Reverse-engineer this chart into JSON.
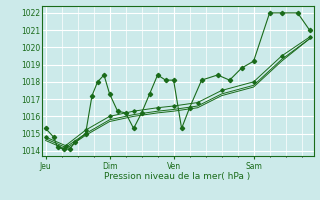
{
  "xlabel": "Pression niveau de la mer( hPa )",
  "bg_color": "#cceaea",
  "grid_color": "#ffffff",
  "line_color": "#1a6b1a",
  "ylim": [
    1013.7,
    1022.4
  ],
  "yticks": [
    1014,
    1015,
    1016,
    1017,
    1018,
    1019,
    1020,
    1021,
    1022
  ],
  "day_labels": [
    "Jeu",
    "Dim",
    "Ven",
    "Sam"
  ],
  "day_positions": [
    0.5,
    8.5,
    16.5,
    26.5
  ],
  "xlim": [
    0,
    34
  ],
  "series1_x": [
    0.5,
    1.5,
    2.0,
    2.8,
    3.5,
    4.2,
    5.5,
    6.3,
    7.0,
    7.8,
    8.5,
    9.5,
    10.5,
    11.5,
    12.5,
    13.5,
    14.5,
    15.5,
    16.5,
    17.5,
    18.5,
    20.0,
    22.0,
    23.5,
    25.0,
    26.5,
    28.5,
    30.0,
    32.0,
    33.5
  ],
  "series1_y": [
    1015.3,
    1014.8,
    1014.2,
    1014.1,
    1014.1,
    1014.5,
    1015.0,
    1017.2,
    1018.0,
    1018.4,
    1017.3,
    1016.3,
    1016.2,
    1015.3,
    1016.2,
    1017.3,
    1018.4,
    1018.1,
    1018.1,
    1015.3,
    1016.5,
    1018.1,
    1018.4,
    1018.1,
    1018.8,
    1019.2,
    1022.0,
    1022.0,
    1022.0,
    1021.0
  ],
  "series2_x": [
    0.5,
    3.0,
    5.5,
    8.5,
    11.5,
    14.5,
    16.5,
    19.5,
    22.5,
    26.5,
    30.0,
    33.5
  ],
  "series2_y": [
    1014.8,
    1014.3,
    1015.2,
    1016.0,
    1016.3,
    1016.5,
    1016.6,
    1016.8,
    1017.5,
    1018.0,
    1019.5,
    1020.6
  ],
  "series3_x": [
    0.5,
    3.0,
    5.5,
    8.5,
    11.5,
    14.5,
    16.5,
    19.5,
    22.5,
    26.5,
    30.0,
    33.5
  ],
  "series3_y": [
    1014.6,
    1014.1,
    1014.9,
    1015.7,
    1016.0,
    1016.2,
    1016.3,
    1016.5,
    1017.2,
    1017.7,
    1019.2,
    1020.5
  ],
  "series4_x": [
    0.5,
    3.0,
    5.5,
    8.5,
    11.5,
    14.5,
    16.5,
    19.5,
    22.5,
    26.5,
    30.0,
    33.5
  ],
  "series4_y": [
    1014.7,
    1014.2,
    1015.0,
    1015.8,
    1016.1,
    1016.3,
    1016.4,
    1016.6,
    1017.3,
    1017.8,
    1019.3,
    1020.5
  ]
}
